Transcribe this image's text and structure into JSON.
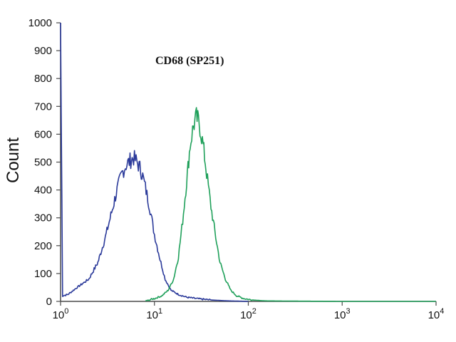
{
  "chart_data": {
    "type": "line",
    "title": "CD68 (SP251)",
    "xlabel": "",
    "ylabel": "Count",
    "x_scale": "log",
    "xlim": [
      1,
      10000
    ],
    "ylim": [
      0,
      1000
    ],
    "x_ticks": [
      {
        "value": 1,
        "base": "10",
        "exp": "0"
      },
      {
        "value": 10,
        "base": "10",
        "exp": "1"
      },
      {
        "value": 100,
        "base": "10",
        "exp": "2"
      },
      {
        "value": 1000,
        "base": "10",
        "exp": "3"
      },
      {
        "value": 10000,
        "base": "10",
        "exp": "4"
      }
    ],
    "y_ticks": [
      {
        "value": 0,
        "label": "0"
      },
      {
        "value": 100,
        "label": "100"
      },
      {
        "value": 200,
        "label": "200"
      },
      {
        "value": 300,
        "label": "300"
      },
      {
        "value": 400,
        "label": "400"
      },
      {
        "value": 500,
        "label": "500"
      },
      {
        "value": 600,
        "label": "600"
      },
      {
        "value": 700,
        "label": "700"
      },
      {
        "value": 800,
        "label": "800"
      },
      {
        "value": 900,
        "label": "900"
      },
      {
        "value": 1000,
        "label": "1000"
      }
    ],
    "grid": false,
    "series": [
      {
        "color": "#2b3a9a",
        "x": [
          1.0,
          1.05,
          1.2,
          1.5,
          2.0,
          2.5,
          3.0,
          3.5,
          4.0,
          4.5,
          5.0,
          5.5,
          6.0,
          6.5,
          7.0,
          7.5,
          8.0,
          9.0,
          10.0,
          11.5,
          13.0,
          15.0,
          18.0,
          22.0,
          28.0,
          40.0,
          60.0,
          100.0
        ],
        "y": [
          1000,
          20,
          25,
          50,
          80,
          140,
          230,
          320,
          400,
          460,
          490,
          505,
          515,
          500,
          480,
          450,
          410,
          330,
          240,
          150,
          80,
          40,
          25,
          15,
          10,
          5,
          2,
          0
        ]
      },
      {
        "color": "#1fa05a",
        "x": [
          8.0,
          10.0,
          12.0,
          14.0,
          16.0,
          18.0,
          20.0,
          22.0,
          24.0,
          26.0,
          28.0,
          30.0,
          33.0,
          36.0,
          40.0,
          45.0,
          50.0,
          57.0,
          65.0,
          75.0,
          90.0,
          110.0,
          150.0,
          300.0,
          1000.0,
          10000.0
        ],
        "y": [
          2,
          10,
          20,
          40,
          80,
          160,
          290,
          430,
          560,
          630,
          660,
          640,
          560,
          460,
          340,
          230,
          140,
          80,
          40,
          20,
          10,
          5,
          2,
          1,
          0,
          0
        ]
      }
    ]
  }
}
